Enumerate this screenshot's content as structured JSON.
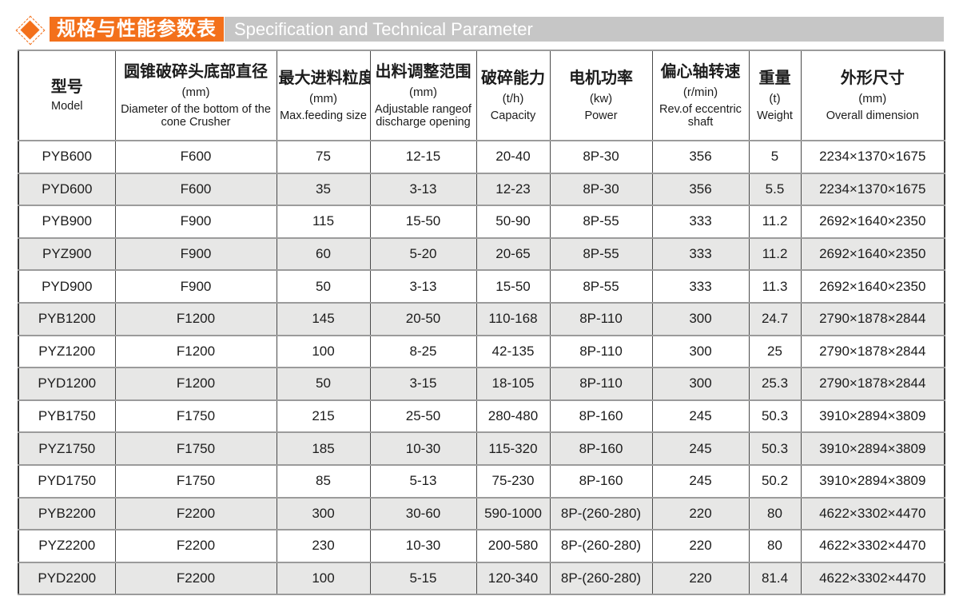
{
  "header": {
    "title_zh": "规格与性能参数表",
    "title_en": "Specification and Technical Parameter",
    "accent_color": "#f3701b",
    "bar_color": "#c6c6c6"
  },
  "table": {
    "columns": [
      {
        "key": "model",
        "zh": "型号",
        "unit": "",
        "en": "Model"
      },
      {
        "key": "diameter",
        "zh": "圆锥破碎头底部直径",
        "unit": "(mm)",
        "en": "Diameter of the bottom of the cone Crusher"
      },
      {
        "key": "feeding",
        "zh": "最大进料粒度",
        "unit": "(mm)",
        "en": "Max.feeding size"
      },
      {
        "key": "discharge",
        "zh": "出料调整范围",
        "unit": "(mm)",
        "en": "Adjustable rangeof discharge opening"
      },
      {
        "key": "capacity",
        "zh": "破碎能力",
        "unit": "(t/h)",
        "en": "Capacity"
      },
      {
        "key": "power",
        "zh": "电机功率",
        "unit": "(kw)",
        "en": "Power"
      },
      {
        "key": "rev",
        "zh": "偏心轴转速",
        "unit": "(r/min)",
        "en": "Rev.of eccentric shaft"
      },
      {
        "key": "weight",
        "zh": "重量",
        "unit": "(t)",
        "en": "Weight"
      },
      {
        "key": "dimension",
        "zh": "外形尺寸",
        "unit": "(mm)",
        "en": "Overall dimension"
      }
    ],
    "rows": [
      [
        "PYB600",
        "F600",
        "75",
        "12-15",
        "20-40",
        "8P-30",
        "356",
        "5",
        "2234×1370×1675"
      ],
      [
        "PYD600",
        "F600",
        "35",
        "3-13",
        "12-23",
        "8P-30",
        "356",
        "5.5",
        "2234×1370×1675"
      ],
      [
        "PYB900",
        "F900",
        "115",
        "15-50",
        "50-90",
        "8P-55",
        "333",
        "11.2",
        "2692×1640×2350"
      ],
      [
        "PYZ900",
        "F900",
        "60",
        "5-20",
        "20-65",
        "8P-55",
        "333",
        "11.2",
        "2692×1640×2350"
      ],
      [
        "PYD900",
        "F900",
        "50",
        "3-13",
        "15-50",
        "8P-55",
        "333",
        "11.3",
        "2692×1640×2350"
      ],
      [
        "PYB1200",
        "F1200",
        "145",
        "20-50",
        "110-168",
        "8P-110",
        "300",
        "24.7",
        "2790×1878×2844"
      ],
      [
        "PYZ1200",
        "F1200",
        "100",
        "8-25",
        "42-135",
        "8P-110",
        "300",
        "25",
        "2790×1878×2844"
      ],
      [
        "PYD1200",
        "F1200",
        "50",
        "3-15",
        "18-105",
        "8P-110",
        "300",
        "25.3",
        "2790×1878×2844"
      ],
      [
        "PYB1750",
        "F1750",
        "215",
        "25-50",
        "280-480",
        "8P-160",
        "245",
        "50.3",
        "3910×2894×3809"
      ],
      [
        "PYZ1750",
        "F1750",
        "185",
        "10-30",
        "115-320",
        "8P-160",
        "245",
        "50.3",
        "3910×2894×3809"
      ],
      [
        "PYD1750",
        "F1750",
        "85",
        "5-13",
        "75-230",
        "8P-160",
        "245",
        "50.2",
        "3910×2894×3809"
      ],
      [
        "PYB2200",
        "F2200",
        "300",
        "30-60",
        "590-1000",
        "8P-(260-280)",
        "220",
        "80",
        "4622×3302×4470"
      ],
      [
        "PYZ2200",
        "F2200",
        "230",
        "10-30",
        "200-580",
        "8P-(260-280)",
        "220",
        "80",
        "4622×3302×4470"
      ],
      [
        "PYD2200",
        "F2200",
        "100",
        "5-15",
        "120-340",
        "8P-(260-280)",
        "220",
        "81.4",
        "4622×3302×4470"
      ]
    ]
  }
}
